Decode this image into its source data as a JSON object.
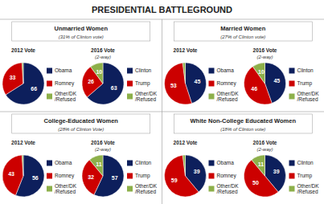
{
  "title": "PRESIDENTIAL BATTLEGROUND",
  "chart_data": [
    {
      "type": "pie",
      "title": "Unmarried Women",
      "subtitle": "(31% of Clinton vote)",
      "colors": [
        "#0d1f5c",
        "#cc0000",
        "#8db04a"
      ],
      "data_labels": true,
      "series": [
        {
          "name": "2012 Vote",
          "categories": [
            "Obama",
            "Romney",
            "Other/DK\n/Refused"
          ],
          "values": [
            66,
            33,
            1
          ],
          "value_labels": [
            "66",
            "33",
            null
          ]
        },
        {
          "name": "2016 Vote",
          "annotations": [
            "(2-way)"
          ],
          "categories": [
            "Clinton",
            "Trump",
            "Other/DK\n/Refused"
          ],
          "values": [
            63,
            26,
            10
          ],
          "value_labels": [
            "63",
            "26",
            "10"
          ]
        }
      ]
    },
    {
      "type": "pie",
      "title": "Married Women",
      "subtitle": "(27% of Clinton vote)",
      "colors": [
        "#0d1f5c",
        "#cc0000",
        "#8db04a"
      ],
      "data_labels": true,
      "series": [
        {
          "name": "2012 Vote",
          "categories": [
            "Obama",
            "Romney",
            "Other/DK\n/Refused"
          ],
          "values": [
            45,
            53,
            2
          ],
          "value_labels": [
            "45",
            "53",
            null
          ]
        },
        {
          "name": "2016 Vote",
          "annotations": [
            "(2-way)"
          ],
          "categories": [
            "Clinton",
            "Trump",
            "Other/DK\n/Refused"
          ],
          "values": [
            45,
            46,
            10
          ],
          "value_labels": [
            "45",
            "46",
            "10"
          ]
        }
      ]
    },
    {
      "type": "pie",
      "title": "College-Educated Women",
      "subtitle": "(28% of Clinton Vote)",
      "colors": [
        "#0d1f5c",
        "#cc0000",
        "#8db04a"
      ],
      "data_labels": true,
      "series": [
        {
          "name": "2012 Vote",
          "categories": [
            "Obama",
            "Romney",
            "Other/DK\n/Refused"
          ],
          "values": [
            56,
            43,
            1
          ],
          "value_labels": [
            "56",
            "43",
            null
          ]
        },
        {
          "name": "2016 Vote",
          "annotations": [
            "(2-way)"
          ],
          "categories": [
            "Clinton",
            "Trump",
            "Other/DK\n/Refused"
          ],
          "values": [
            57,
            32,
            11
          ],
          "value_labels": [
            "57",
            "32",
            "11"
          ]
        }
      ]
    },
    {
      "type": "pie",
      "title": "White Non-College Educated Women",
      "subtitle": "(18% of Clinton vote)",
      "colors": [
        "#0d1f5c",
        "#cc0000",
        "#8db04a"
      ],
      "data_labels": true,
      "series": [
        {
          "name": "2012 Vote",
          "categories": [
            "Obama",
            "Romney",
            "Other/DK\n/Refused"
          ],
          "values": [
            39,
            59,
            2
          ],
          "value_labels": [
            "39",
            "59",
            null
          ]
        },
        {
          "name": "2016 Vote",
          "annotations": [
            "(2-way)"
          ],
          "categories": [
            "Clinton",
            "Trump",
            "Other/DK\n/Refused"
          ],
          "values": [
            39,
            50,
            11
          ],
          "value_labels": [
            "39",
            "50",
            "11"
          ]
        }
      ]
    }
  ]
}
